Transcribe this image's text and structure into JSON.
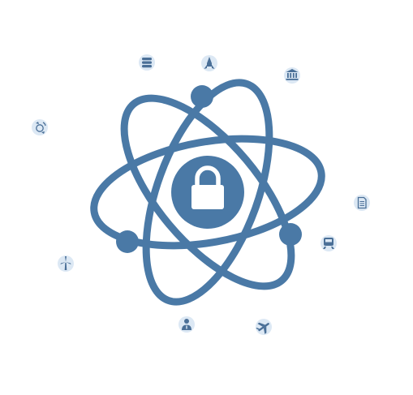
{
  "colors": {
    "primary": "#4a79a6",
    "badge_background": "#dce8f4",
    "badge_icon": "#4a6f97",
    "background": "#ffffff"
  },
  "central_emblem": {
    "icon": "atom-icon",
    "center_icon": "padlock-icon",
    "electron_count": 3
  },
  "orbit_icons": [
    "database-icon",
    "rocket-icon",
    "bank-icon",
    "satellite-icon",
    "document-icon",
    "train-icon",
    "wind-turbine-icon",
    "doctor-icon",
    "airplane-icon"
  ]
}
